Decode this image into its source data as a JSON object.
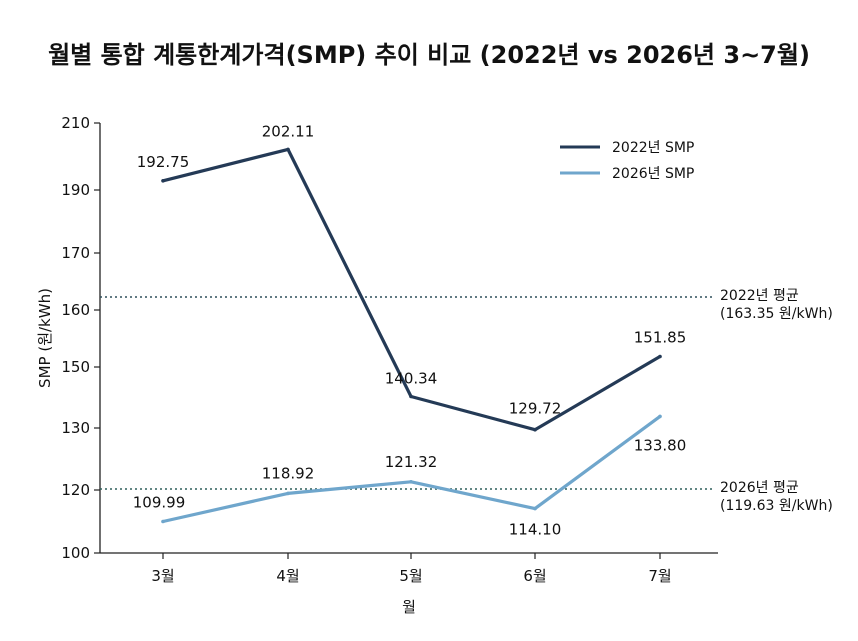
{
  "chart_data": {
    "type": "line",
    "title": "월별 통합 계통한계가격(SMP) 추이 비교 (2022년 vs 2026년 3~7월)",
    "xlabel": "월",
    "ylabel": "SMP (원/kWh)",
    "categories": [
      "3월",
      "4월",
      "5월",
      "6월",
      "7월"
    ],
    "y_ticks": [
      100,
      120,
      130,
      150,
      160,
      170,
      190,
      210
    ],
    "y_tick_labels": [
      "100",
      "120",
      "130",
      "150",
      "160",
      "170",
      "190",
      "210"
    ],
    "ylim": [
      100,
      210
    ],
    "grid": false,
    "legend_position": "top-right",
    "series": [
      {
        "name": "2022년 SMP",
        "color": "#243a56",
        "values": [
          192.75,
          202.11,
          140.34,
          129.72,
          151.85
        ],
        "labels": [
          "192.75",
          "202.11",
          "140.34",
          "129.72",
          "151.85"
        ]
      },
      {
        "name": "2026년 SMP",
        "color": "#6fa6cc",
        "values": [
          109.99,
          118.92,
          121.32,
          114.1,
          133.8
        ],
        "labels": [
          "109.99",
          "118.92",
          "121.32",
          "114.10",
          "133.80"
        ]
      }
    ],
    "reference_lines": [
      {
        "value": 163.35,
        "label_line1": "2022년 평균",
        "label_line2": "(163.35 원/kWh)",
        "color": "#2f4f5a"
      },
      {
        "value": 119.63,
        "label_line1": "2026년 평균",
        "label_line2": "(119.63 원/kWh)",
        "color": "#2f5f5a"
      }
    ]
  }
}
